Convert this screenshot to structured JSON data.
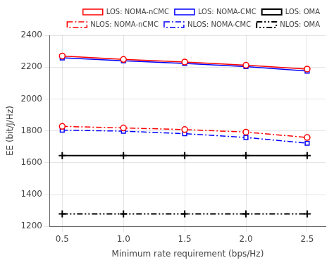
{
  "chart_data": {
    "type": "line",
    "xlabel": "Minimum rate requirement (bps/Hz)",
    "ylabel": "EE (bit/J/Hz)",
    "x": [
      0.5,
      1.0,
      1.5,
      2.0,
      2.5
    ],
    "series": [
      {
        "name": "LOS: NOMA-nCMC",
        "color": "#FF0000",
        "marker": "circle",
        "line_style": "solid",
        "values": [
          2270,
          2248,
          2232,
          2212,
          2188
        ]
      },
      {
        "name": "LOS: NOMA-CMC",
        "color": "#0000FF",
        "marker": "square",
        "line_style": "solid",
        "values": [
          2258,
          2240,
          2223,
          2203,
          2175
        ]
      },
      {
        "name": "LOS: OMA",
        "color": "#000000",
        "marker": "plus",
        "line_style": "solid",
        "values": [
          1645,
          1645,
          1645,
          1645,
          1645
        ]
      },
      {
        "name": "NLOS: NOMA-nCMC",
        "color": "#FF0000",
        "marker": "circle",
        "line_style": "dashdot",
        "values": [
          1828,
          1818,
          1808,
          1792,
          1758
        ]
      },
      {
        "name": "NLOS: NOMA-CMC",
        "color": "#0000FF",
        "marker": "square",
        "line_style": "dashdot",
        "values": [
          1804,
          1798,
          1782,
          1758,
          1722
        ]
      },
      {
        "name": "NLOS: OMA",
        "color": "#000000",
        "marker": "plus",
        "line_style": "dashdotdot",
        "values": [
          1278,
          1278,
          1278,
          1278,
          1278
        ]
      }
    ],
    "xlim": [
      0.4,
      2.65
    ],
    "ylim": [
      1200,
      2400
    ],
    "xticks": [
      0.5,
      {
        "value": 1.0,
        "label": "1.0"
      },
      1.5,
      {
        "value": 2.0,
        "label": "2.0"
      },
      2.5
    ],
    "yticks": [
      1200,
      1400,
      1600,
      1800,
      2000,
      2200,
      2400
    ],
    "grid": true,
    "legend": "upper right"
  }
}
